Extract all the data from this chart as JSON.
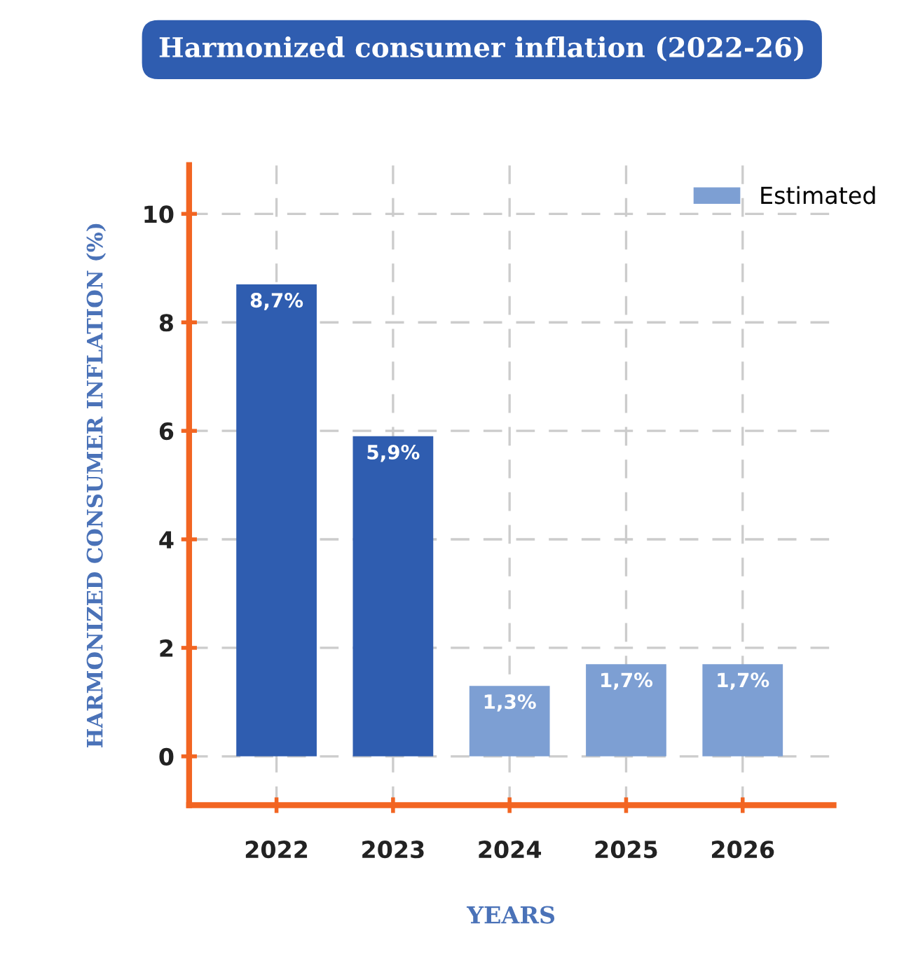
{
  "chart_data": {
    "type": "bar",
    "title": "Harmonized consumer inflation (2022-26)",
    "xlabel": "YEARS",
    "ylabel": "HARMONIZED CONSUMER INFLATION (%)",
    "categories": [
      "2022",
      "2023",
      "2024",
      "2025",
      "2026"
    ],
    "series": [
      {
        "color": "#2f5db0",
        "values": [
          8.7,
          5.9,
          null,
          null,
          null
        ],
        "value_labels": [
          "8,7%",
          "5,9%",
          null,
          null,
          null
        ]
      },
      {
        "name": "Estimated",
        "color": "#7d9fd3",
        "values": [
          null,
          null,
          1.3,
          1.7,
          1.7
        ],
        "value_labels": [
          null,
          null,
          "1,3%",
          "1,7%",
          "1,7%"
        ]
      }
    ],
    "ylim": [
      -0.9,
      10.9
    ],
    "yticks": [
      0,
      2,
      4,
      6,
      8,
      10
    ],
    "grid": true,
    "legend": "top right"
  }
}
